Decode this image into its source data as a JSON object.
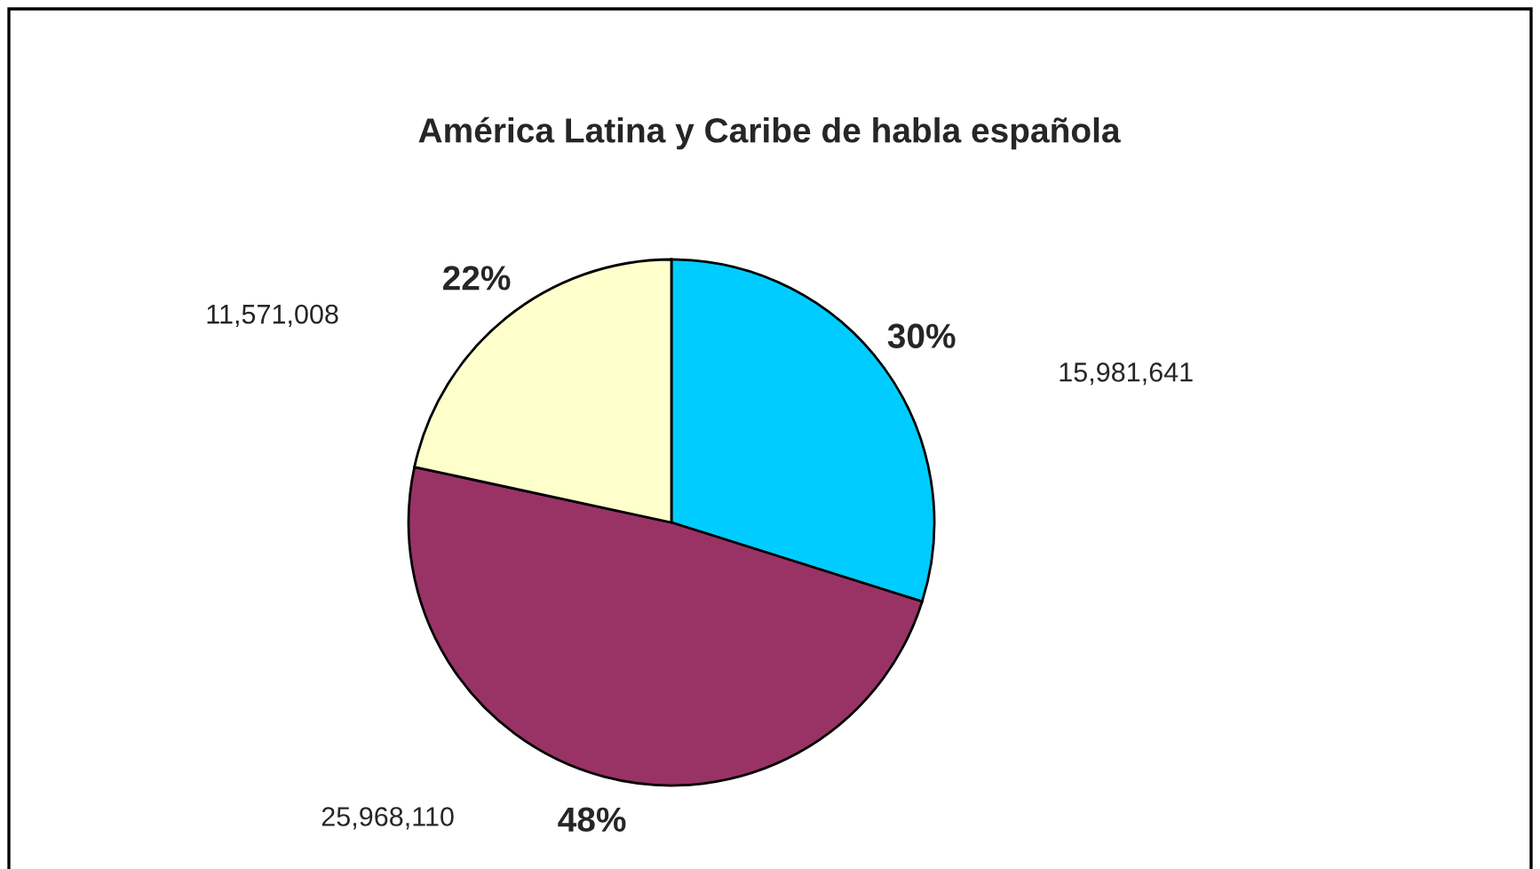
{
  "chart_data": {
    "type": "pie",
    "title": "América Latina y Caribe de habla española",
    "categories": [
      null,
      null,
      null
    ],
    "values": [
      15981641,
      25968110,
      11571008
    ],
    "colors": [
      "#00ccff",
      "#993366",
      "#ffffcc"
    ],
    "value_labels": [
      "15,981,641",
      "25,968,110",
      "11,571,008"
    ],
    "annotations": [
      "30%",
      "48%",
      "22%"
    ],
    "legend": false
  }
}
